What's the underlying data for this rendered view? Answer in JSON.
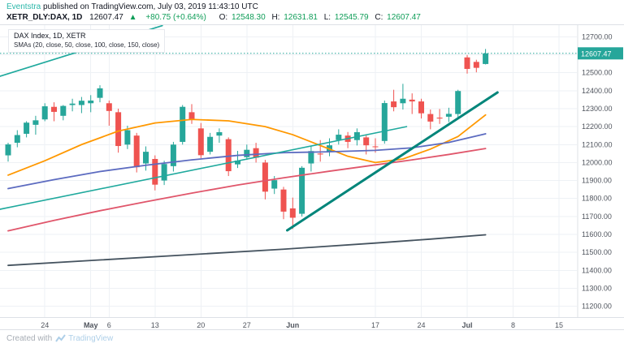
{
  "header": {
    "byline_user": "Eventstra",
    "byline_rest": " published on TradingView.com, July 03, 2019 11:43:10 UTC",
    "symbol": "XETR_DLY:DAX, 1D",
    "last": "12607.47",
    "arrow": "▲",
    "change": "+80.75 (+0.64%)",
    "o_label": "O:",
    "o_value": "12548.30",
    "h_label": "H:",
    "h_value": "12631.81",
    "l_label": "L:",
    "l_value": "12545.79",
    "c_label": "C:",
    "c_value": "12607.47"
  },
  "legend": {
    "title": "DAX Index, 1D, XETR",
    "subtitle": "SMAs (20, close, 50, close, 100, close, 150, close)"
  },
  "footer": {
    "created_with": "Created with",
    "brand": "TradingView"
  },
  "axis": {
    "price_tag": "12607.47",
    "price_labels": [
      "12700.00",
      "12600.00",
      "12500.00",
      "12400.00",
      "12300.00",
      "12200.00",
      "12100.00",
      "12000.00",
      "11900.00",
      "11800.00",
      "11700.00",
      "11600.00",
      "11500.00",
      "11400.00",
      "11300.00",
      "11200.00"
    ],
    "date_labels": [
      {
        "i": 4,
        "t": "24",
        "bold": false
      },
      {
        "i": 9,
        "t": "May",
        "bold": true
      },
      {
        "i": 11,
        "t": "6",
        "bold": false
      },
      {
        "i": 16,
        "t": "13",
        "bold": false
      },
      {
        "i": 21,
        "t": "20",
        "bold": false
      },
      {
        "i": 26,
        "t": "27",
        "bold": false
      },
      {
        "i": 31,
        "t": "Jun",
        "bold": true
      },
      {
        "i": 40,
        "t": "17",
        "bold": false
      },
      {
        "i": 45,
        "t": "24",
        "bold": false
      },
      {
        "i": 50,
        "t": "Jul",
        "bold": true
      },
      {
        "i": 55,
        "t": "8",
        "bold": false
      },
      {
        "i": 60,
        "t": "15",
        "bold": false
      }
    ]
  },
  "colors": {
    "up": "#26a69a",
    "down": "#ef5350",
    "grid": "#eef1f5",
    "border": "#dde0e6",
    "axis_text": "#50555e",
    "tag_bg": "#26a69a",
    "tag_text": "#ffffff",
    "dotted_line": "#26a69a"
  },
  "chart_data": {
    "type": "candlestick",
    "title": "DAX Index, 1D, XETR",
    "interval": "1D",
    "price_axis_range": [
      11140,
      12760
    ],
    "last_price": 12607.47,
    "candle_columns": [
      "date",
      "open",
      "high",
      "low",
      "close"
    ],
    "candles": [
      [
        "Apr 16",
        12040,
        12110,
        12005,
        12101
      ],
      [
        "Apr 17",
        12110,
        12180,
        12085,
        12153
      ],
      [
        "Apr 18",
        12160,
        12230,
        12140,
        12222
      ],
      [
        "Apr 23",
        12210,
        12260,
        12155,
        12235
      ],
      [
        "Apr 24",
        12240,
        12330,
        12230,
        12313
      ],
      [
        "Apr 25",
        12310,
        12335,
        12230,
        12282
      ],
      [
        "Apr 26",
        12260,
        12320,
        12235,
        12315
      ],
      [
        "Apr 29",
        12320,
        12355,
        12285,
        12328
      ],
      [
        "Apr 30",
        12320,
        12365,
        12275,
        12344
      ],
      [
        "May 2",
        12330,
        12375,
        12280,
        12345
      ],
      [
        "May 3",
        12360,
        12430,
        12335,
        12413
      ],
      [
        "May 6",
        12330,
        12345,
        12205,
        12287
      ],
      [
        "May 7",
        12280,
        12300,
        12055,
        12092
      ],
      [
        "May 8",
        12100,
        12205,
        12075,
        12180
      ],
      [
        "May 9",
        12150,
        12165,
        11945,
        11974
      ],
      [
        "May 10",
        11995,
        12090,
        11955,
        12060
      ],
      [
        "May 13",
        12020,
        12040,
        11845,
        11877
      ],
      [
        "May 14",
        11900,
        12010,
        11875,
        11992
      ],
      [
        "May 15",
        11980,
        12115,
        11950,
        12100
      ],
      [
        "May 16",
        12115,
        12320,
        12100,
        12310
      ],
      [
        "May 17",
        12280,
        12325,
        12215,
        12239
      ],
      [
        "May 20",
        12190,
        12220,
        12025,
        12041
      ],
      [
        "May 21",
        12060,
        12165,
        12045,
        12143
      ],
      [
        "May 22",
        12150,
        12190,
        12110,
        12169
      ],
      [
        "May 23",
        12130,
        12140,
        11925,
        11952
      ],
      [
        "May 24",
        11990,
        12065,
        11970,
        12011
      ],
      [
        "May 27",
        12030,
        12100,
        12015,
        12071
      ],
      [
        "May 28",
        12080,
        12110,
        12000,
        12027
      ],
      [
        "May 29",
        12000,
        12015,
        11795,
        11838
      ],
      [
        "May 30",
        11855,
        11925,
        11825,
        11902
      ],
      [
        "May 31",
        11850,
        11865,
        11685,
        11727
      ],
      [
        "Jun 3",
        11745,
        11805,
        11630,
        11693
      ],
      [
        "Jun 4",
        11715,
        11980,
        11700,
        11971
      ],
      [
        "Jun 5",
        11995,
        12090,
        11950,
        12064
      ],
      [
        "Jun 6",
        12050,
        12125,
        12005,
        12045
      ],
      [
        "Jun 7",
        12060,
        12135,
        12035,
        12096
      ],
      [
        "Jun 11",
        12125,
        12185,
        12100,
        12155
      ],
      [
        "Jun 12",
        12150,
        12170,
        12080,
        12115
      ],
      [
        "Jun 13",
        12125,
        12190,
        12095,
        12169
      ],
      [
        "Jun 14",
        12140,
        12155,
        12045,
        12096
      ],
      [
        "Jun 17",
        12090,
        12135,
        12055,
        12086
      ],
      [
        "Jun 18",
        12120,
        12345,
        12105,
        12331
      ],
      [
        "Jun 19",
        12340,
        12405,
        12285,
        12308
      ],
      [
        "Jun 20",
        12330,
        12438,
        12295,
        12355
      ],
      [
        "Jun 21",
        12350,
        12385,
        12270,
        12340
      ],
      [
        "Jun 24",
        12340,
        12355,
        12245,
        12274
      ],
      [
        "Jun 25",
        12270,
        12295,
        12185,
        12228
      ],
      [
        "Jun 26",
        12250,
        12298,
        12215,
        12245
      ],
      [
        "Jun 27",
        12255,
        12305,
        12225,
        12271
      ],
      [
        "Jun 28",
        12270,
        12405,
        12245,
        12398
      ],
      [
        "Jul 1",
        12585,
        12598,
        12495,
        12521
      ],
      [
        "Jul 2",
        12560,
        12572,
        12502,
        12527
      ],
      [
        "Jul 3",
        12548.3,
        12631.81,
        12545.79,
        12607.47
      ]
    ],
    "sma": [
      {
        "key": "sma-20-line",
        "name": "SMA 20 close",
        "color": "#ff9800",
        "points": [
          [
            0,
            11930
          ],
          [
            4,
            12010
          ],
          [
            8,
            12100
          ],
          [
            12,
            12175
          ],
          [
            16,
            12220
          ],
          [
            20,
            12240
          ],
          [
            24,
            12232
          ],
          [
            28,
            12200
          ],
          [
            31,
            12155
          ],
          [
            34,
            12095
          ],
          [
            37,
            12035
          ],
          [
            40,
            12000
          ],
          [
            43,
            12020
          ],
          [
            46,
            12075
          ],
          [
            49,
            12145
          ],
          [
            52,
            12265
          ]
        ]
      },
      {
        "key": "sma-50-line",
        "name": "SMA 50 close",
        "color": "#5c6bc0",
        "points": [
          [
            0,
            11855
          ],
          [
            5,
            11905
          ],
          [
            10,
            11950
          ],
          [
            15,
            11985
          ],
          [
            20,
            12015
          ],
          [
            25,
            12040
          ],
          [
            30,
            12055
          ],
          [
            35,
            12060
          ],
          [
            40,
            12068
          ],
          [
            44,
            12082
          ],
          [
            48,
            12112
          ],
          [
            52,
            12160
          ]
        ]
      },
      {
        "key": "sma-100-line",
        "name": "SMA 100 close",
        "color": "#e0566b",
        "points": [
          [
            0,
            11620
          ],
          [
            5,
            11678
          ],
          [
            10,
            11732
          ],
          [
            15,
            11782
          ],
          [
            20,
            11830
          ],
          [
            25,
            11875
          ],
          [
            30,
            11915
          ],
          [
            35,
            11952
          ],
          [
            40,
            11987
          ],
          [
            44,
            12015
          ],
          [
            48,
            12045
          ],
          [
            52,
            12078
          ]
        ]
      },
      {
        "key": "sma-150-line",
        "name": "SMA 150 close",
        "color": "#45535f",
        "points": [
          [
            0,
            11428
          ],
          [
            10,
            11458
          ],
          [
            20,
            11488
          ],
          [
            30,
            11518
          ],
          [
            40,
            11552
          ],
          [
            46,
            11574
          ],
          [
            52,
            11598
          ]
        ]
      }
    ],
    "trendlines": [
      {
        "name": "upper-resistance-trendline",
        "i1": -0.9,
        "p1": 12480,
        "i2": 16.8,
        "p2": 12762,
        "color": "#1fa99d",
        "width": 1.6
      },
      {
        "name": "broken-support-trendline",
        "i1": -0.9,
        "p1": 11740,
        "i2": 43.4,
        "p2": 12200,
        "color": "#1fa99d",
        "width": 1.6
      },
      {
        "name": "rising-support-trendline",
        "i1": 30.4,
        "p1": 11623,
        "i2": 53.3,
        "p2": 12390,
        "color": "#00857a",
        "width": 3
      }
    ]
  }
}
